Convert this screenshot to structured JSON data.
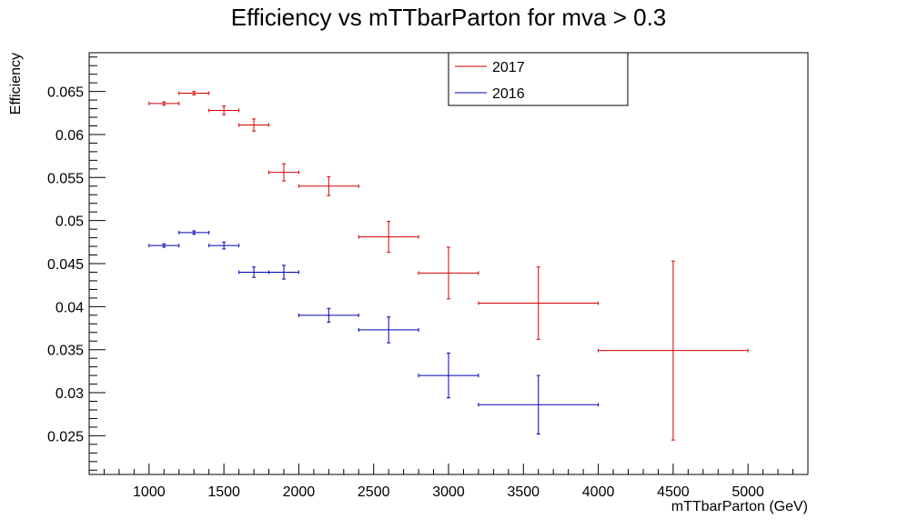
{
  "chart_data": {
    "type": "scatter",
    "title": "Efficiency vs mTTbarParton for mva > 0.3",
    "xlabel": "mTTbarParton (GeV)",
    "ylabel": "Efficiency",
    "xlim": [
      600,
      5400
    ],
    "ylim": [
      0.0205,
      0.0695
    ],
    "grid": false,
    "legend_position": "top-center",
    "x_ticks": [
      1000,
      1500,
      2000,
      2500,
      3000,
      3500,
      4000,
      4500,
      5000
    ],
    "x_tick_labels": [
      "1000",
      "1500",
      "2000",
      "2500",
      "3000",
      "3500",
      "4000",
      "4500",
      "5000"
    ],
    "y_ticks": [
      0.025,
      0.03,
      0.035,
      0.04,
      0.045,
      0.05,
      0.055,
      0.06,
      0.065
    ],
    "y_tick_labels": [
      "0.025",
      "0.03",
      "0.035",
      "0.04",
      "0.045",
      "0.05",
      "0.055",
      "0.06",
      "0.065"
    ],
    "series": [
      {
        "name": "2017",
        "color": "#d40000",
        "points": [
          {
            "x": 1100,
            "xerr": 100,
            "y": 0.0636,
            "yerr": 0.0002
          },
          {
            "x": 1300,
            "xerr": 100,
            "y": 0.0648,
            "yerr": 0.0002
          },
          {
            "x": 1500,
            "xerr": 100,
            "y": 0.0628,
            "yerr": 0.0005
          },
          {
            "x": 1700,
            "xerr": 100,
            "y": 0.0611,
            "yerr": 0.0007
          },
          {
            "x": 1900,
            "xerr": 100,
            "y": 0.0556,
            "yerr": 0.001
          },
          {
            "x": 2200,
            "xerr": 200,
            "y": 0.054,
            "yerr": 0.0011
          },
          {
            "x": 2600,
            "xerr": 200,
            "y": 0.0481,
            "yerr": 0.0018
          },
          {
            "x": 3000,
            "xerr": 200,
            "y": 0.0439,
            "yerr": 0.003
          },
          {
            "x": 3600,
            "xerr": 400,
            "y": 0.0404,
            "yerr": 0.0042
          },
          {
            "x": 4500,
            "xerr": 500,
            "y": 0.0349,
            "yerr": 0.0104
          }
        ]
      },
      {
        "name": "2016",
        "color": "#0000b4",
        "points": [
          {
            "x": 1100,
            "xerr": 100,
            "y": 0.0471,
            "yerr": 0.0002
          },
          {
            "x": 1300,
            "xerr": 100,
            "y": 0.0486,
            "yerr": 0.0002
          },
          {
            "x": 1500,
            "xerr": 100,
            "y": 0.0471,
            "yerr": 0.0004
          },
          {
            "x": 1700,
            "xerr": 100,
            "y": 0.044,
            "yerr": 0.0006
          },
          {
            "x": 1900,
            "xerr": 100,
            "y": 0.044,
            "yerr": 0.0008
          },
          {
            "x": 2200,
            "xerr": 200,
            "y": 0.039,
            "yerr": 0.0008
          },
          {
            "x": 2600,
            "xerr": 200,
            "y": 0.0373,
            "yerr": 0.0015
          },
          {
            "x": 3000,
            "xerr": 200,
            "y": 0.032,
            "yerr": 0.0026
          },
          {
            "x": 3600,
            "xerr": 400,
            "y": 0.0286,
            "yerr": 0.0034
          }
        ]
      }
    ]
  }
}
